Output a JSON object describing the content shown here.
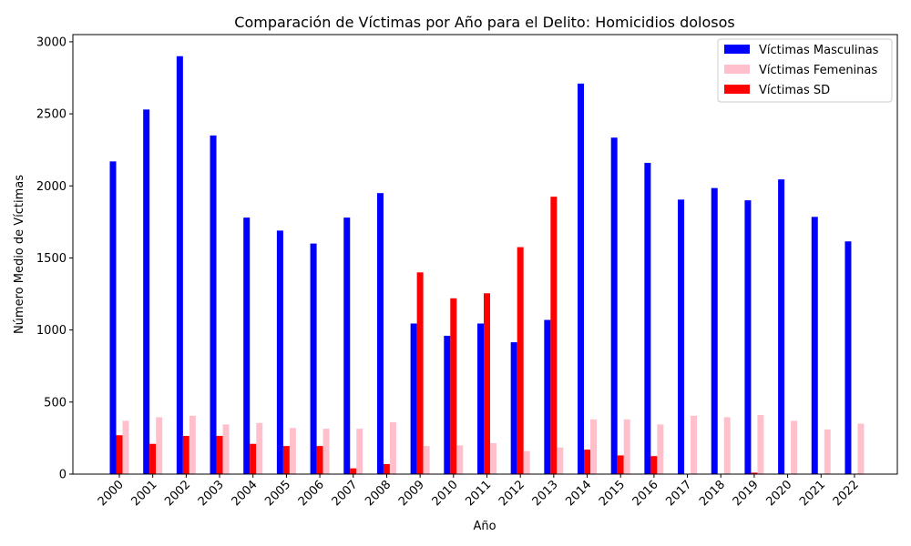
{
  "chart_data": {
    "type": "bar",
    "title": "Comparación de Víctimas por Año para el Delito: Homicidios dolosos",
    "xlabel": "Año",
    "ylabel": "Número Medio de Víctimas",
    "ylim": [
      0,
      3050
    ],
    "yticks": [
      0,
      500,
      1000,
      1500,
      2000,
      2500,
      3000
    ],
    "grid": false,
    "legend_position": "top-right",
    "categories": [
      "2000",
      "2001",
      "2002",
      "2003",
      "2004",
      "2005",
      "2006",
      "2007",
      "2008",
      "2009",
      "2010",
      "2011",
      "2012",
      "2013",
      "2014",
      "2015",
      "2016",
      "2017",
      "2018",
      "2019",
      "2020",
      "2021",
      "2022"
    ],
    "series": [
      {
        "name": "Víctimas Masculinas",
        "color": "#0000ff",
        "values": [
          2170,
          2530,
          2900,
          2350,
          1780,
          1690,
          1600,
          1780,
          1950,
          1045,
          960,
          1045,
          915,
          1070,
          2710,
          2335,
          2160,
          1905,
          1985,
          1900,
          2045,
          1785,
          1615
        ]
      },
      {
        "name": "Víctimas Femeninas",
        "color": "#ffc0cb",
        "values": [
          370,
          395,
          405,
          345,
          355,
          320,
          315,
          315,
          360,
          195,
          200,
          215,
          160,
          185,
          380,
          380,
          345,
          405,
          395,
          410,
          370,
          310,
          350
        ]
      },
      {
        "name": "Víctimas SD",
        "color": "#ff0000",
        "values": [
          270,
          210,
          265,
          265,
          210,
          195,
          195,
          40,
          70,
          1400,
          1220,
          1255,
          1575,
          1925,
          170,
          130,
          125,
          0,
          0,
          10,
          0,
          0,
          0
        ]
      }
    ]
  }
}
